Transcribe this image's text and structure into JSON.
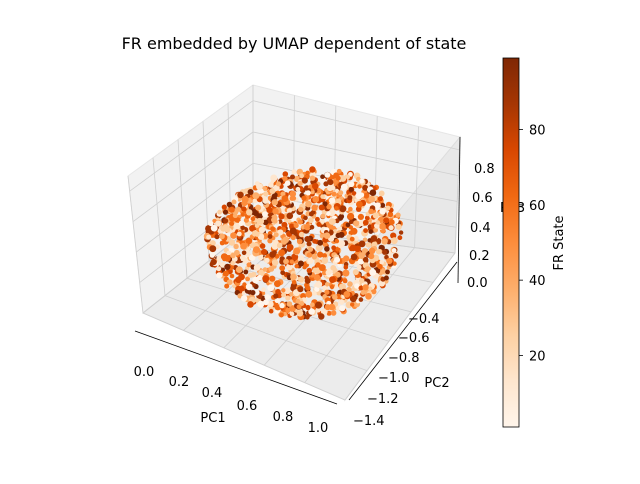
{
  "chart_data": {
    "type": "scatter",
    "projection": "3d",
    "title": "FR embedded by UMAP dependent of state",
    "xlabel": "PC1",
    "ylabel": "PC2",
    "zlabel": "PC3",
    "x_ticks": [
      "0.0",
      "0.2",
      "0.4",
      "0.6",
      "0.8",
      "1.0"
    ],
    "y_ticks": [
      "−1.4",
      "−1.2",
      "−1.0",
      "−0.8",
      "−0.6",
      "−0.4"
    ],
    "z_ticks": [
      "0.0",
      "0.2",
      "0.4",
      "0.6",
      "0.8"
    ],
    "xlim": [
      0.0,
      1.0
    ],
    "ylim": [
      -1.4,
      -0.4
    ],
    "zlim": [
      0.0,
      0.9
    ],
    "colorbar": {
      "label": "FR State",
      "colormap": "Oranges",
      "range": [
        1,
        99
      ],
      "ticks": [
        "20",
        "40",
        "60",
        "80"
      ],
      "colors": [
        "#fff5eb",
        "#fee6ce",
        "#fdd0a2",
        "#fdae6b",
        "#fd8d3c",
        "#f16913",
        "#d94801",
        "#a63603",
        "#7f2704"
      ]
    },
    "series": [
      {
        "point_count_estimate": 3000,
        "shape": "dense hemispherical cloud of points",
        "x_range": [
          0.05,
          0.95
        ],
        "y_range": [
          -1.35,
          -0.55
        ],
        "z_range": [
          0.0,
          0.8
        ],
        "color_value_range": [
          1,
          99
        ]
      }
    ],
    "grid": true
  }
}
